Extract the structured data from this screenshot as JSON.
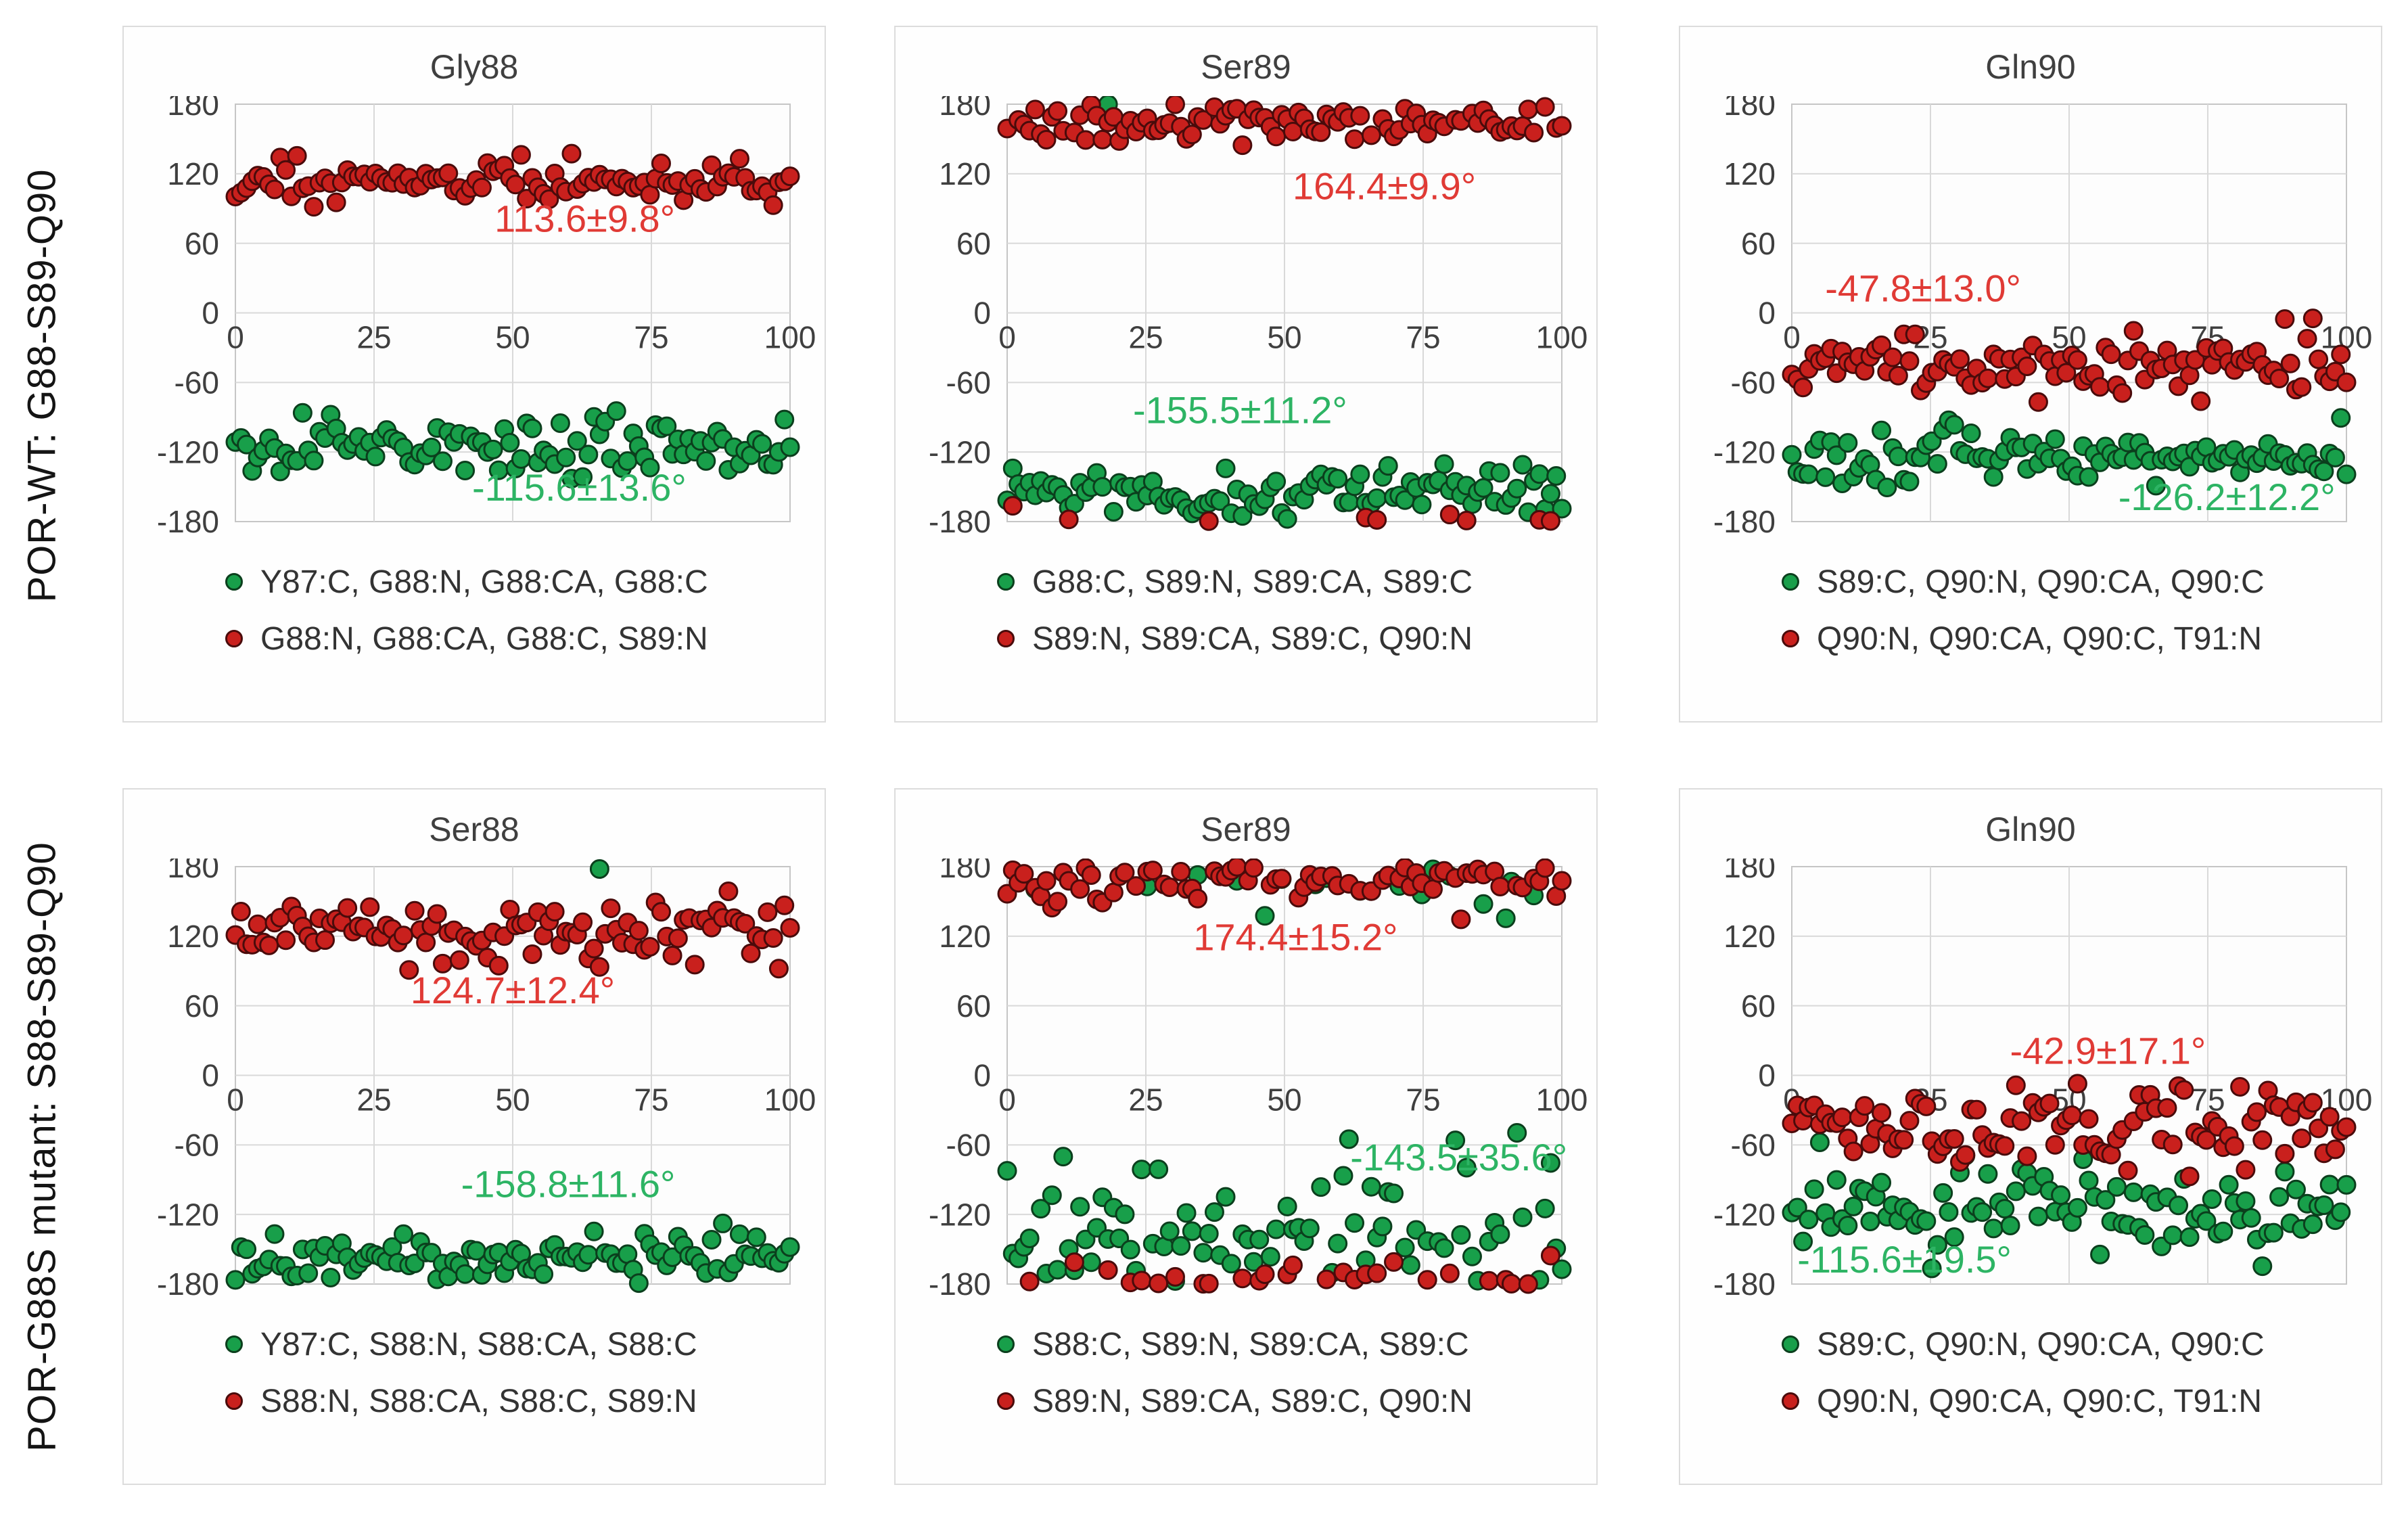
{
  "rows": [
    {
      "label": "POR-WT: G88-S89-Q90"
    },
    {
      "label": "POR-G88S mutant: S88-S89-Q90"
    }
  ],
  "colors": {
    "red_marker": "#c9201d",
    "red_stroke": "#4a0b0b",
    "red_text": "#e03a35",
    "green_marker": "#189f4a",
    "green_stroke": "#0b3f1d",
    "green_text": "#2db464",
    "axis_text": "#3f3f3f",
    "grid": "#d9d9d9",
    "plot_border": "#c6c6c6",
    "plot_bg": "#fdfdfd"
  },
  "chart_data": [
    {
      "type": "scatter",
      "title": "Gly88",
      "xlim": [
        0,
        100
      ],
      "ylim": [
        -180,
        180
      ],
      "x_ticks": [
        0,
        25,
        50,
        75,
        100
      ],
      "y_ticks": [
        180,
        120,
        60,
        0,
        -60,
        -120,
        -180
      ],
      "xlabel": "",
      "ylabel": "",
      "grid": true,
      "series": [
        {
          "name": "Y87:C, G88:N, G88:CA, G88:C",
          "color": "green",
          "mean": -115.6,
          "std": 13.6,
          "n": 100
        },
        {
          "name": "G88:N, G88:CA, G88:C, S89:N",
          "color": "red",
          "mean": 113.6,
          "std": 9.8,
          "n": 100
        }
      ],
      "annotations": [
        {
          "text": "113.6±9.8°",
          "color": "red",
          "x": 63,
          "y": 70,
          "anchor": "middle"
        },
        {
          "text": "-115.6±13.6°",
          "color": "green",
          "x": 62,
          "y": -162,
          "anchor": "middle"
        }
      ],
      "legend": [
        {
          "color": "green",
          "label": "Y87:C, G88:N, G88:CA, G88:C"
        },
        {
          "color": "red",
          "label": "G88:N, G88:CA, G88:C, S89:N"
        }
      ]
    },
    {
      "type": "scatter",
      "title": "Ser89",
      "xlim": [
        0,
        100
      ],
      "ylim": [
        -180,
        180
      ],
      "x_ticks": [
        0,
        25,
        50,
        75,
        100
      ],
      "y_ticks": [
        180,
        120,
        60,
        0,
        -60,
        -120,
        -180
      ],
      "xlabel": "",
      "ylabel": "",
      "grid": true,
      "series": [
        {
          "name": "G88:C, S89:N, S89:CA, S89:C",
          "color": "green",
          "mean": -155.5,
          "std": 11.2,
          "n": 100
        },
        {
          "name": "S89:N, S89:CA, S89:C, Q90:N",
          "color": "red",
          "mean": 164.4,
          "std": 9.9,
          "n": 100
        }
      ],
      "annotations": [
        {
          "text": "164.4±9.9°",
          "color": "red",
          "x": 68,
          "y": 98,
          "anchor": "middle"
        },
        {
          "text": "-155.5±11.2°",
          "color": "green",
          "x": 42,
          "y": -95,
          "anchor": "middle"
        }
      ],
      "legend": [
        {
          "color": "green",
          "label": "G88:C, S89:N, S89:CA, S89:C"
        },
        {
          "color": "red",
          "label": "S89:N, S89:CA, S89:C, Q90:N"
        }
      ]
    },
    {
      "type": "scatter",
      "title": "Gln90",
      "xlim": [
        0,
        100
      ],
      "ylim": [
        -180,
        180
      ],
      "x_ticks": [
        0,
        25,
        50,
        75,
        100
      ],
      "y_ticks": [
        180,
        120,
        60,
        0,
        -60,
        -120,
        -180
      ],
      "xlabel": "",
      "ylabel": "",
      "grid": true,
      "series": [
        {
          "name": "S89:C, Q90:N, Q90:CA, Q90:C",
          "color": "green",
          "mean": -126.2,
          "std": 12.2,
          "n": 100
        },
        {
          "name": "Q90:N, Q90:CA, Q90:C, T91:N",
          "color": "red",
          "mean": -47.8,
          "std": 13.0,
          "n": 100
        }
      ],
      "annotations": [
        {
          "text": "-47.8±13.0°",
          "color": "red",
          "x": 6,
          "y": 10,
          "anchor": "start"
        },
        {
          "text": "-126.2±12.2°",
          "color": "green",
          "x": 98,
          "y": -170,
          "anchor": "end"
        }
      ],
      "legend": [
        {
          "color": "green",
          "label": "S89:C, Q90:N, Q90:CA, Q90:C"
        },
        {
          "color": "red",
          "label": "Q90:N, Q90:CA, Q90:C, T91:N"
        }
      ]
    },
    {
      "type": "scatter",
      "title": "Ser88",
      "xlim": [
        0,
        100
      ],
      "ylim": [
        -180,
        180
      ],
      "x_ticks": [
        0,
        25,
        50,
        75,
        100
      ],
      "y_ticks": [
        180,
        120,
        60,
        0,
        -60,
        -120,
        -180
      ],
      "xlabel": "",
      "ylabel": "",
      "grid": true,
      "series": [
        {
          "name": "Y87:C, S88:N, S88:CA, S88:C",
          "color": "green",
          "mean": -158.8,
          "std": 11.6,
          "n": 100
        },
        {
          "name": "S88:N, S88:CA, S88:C, S89:N",
          "color": "red",
          "mean": 124.7,
          "std": 12.4,
          "n": 100
        }
      ],
      "annotations": [
        {
          "text": "124.7±12.4°",
          "color": "red",
          "x": 50,
          "y": 62,
          "anchor": "middle"
        },
        {
          "text": "-158.8±11.6°",
          "color": "green",
          "x": 60,
          "y": -105,
          "anchor": "middle"
        }
      ],
      "legend": [
        {
          "color": "green",
          "label": "Y87:C, S88:N, S88:CA, S88:C"
        },
        {
          "color": "red",
          "label": "S88:N, S88:CA, S88:C, S89:N"
        }
      ]
    },
    {
      "type": "scatter",
      "title": "Ser89",
      "xlim": [
        0,
        100
      ],
      "ylim": [
        -180,
        180
      ],
      "x_ticks": [
        0,
        25,
        50,
        75,
        100
      ],
      "y_ticks": [
        180,
        120,
        60,
        0,
        -60,
        -120,
        -180
      ],
      "xlabel": "",
      "ylabel": "",
      "grid": true,
      "series": [
        {
          "name": "S88:C, S89:N, S89:CA, S89:C",
          "color": "green",
          "mean": -143.5,
          "std": 35.6,
          "n": 100
        },
        {
          "name": "S89:N, S89:CA, S89:C, Q90:N",
          "color": "red",
          "mean": 174.4,
          "std": 15.2,
          "n": 100
        }
      ],
      "annotations": [
        {
          "text": "174.4±15.2°",
          "color": "red",
          "x": 52,
          "y": 108,
          "anchor": "middle"
        },
        {
          "text": "-143.5±35.6°",
          "color": "green",
          "x": 101,
          "y": -82,
          "anchor": "end"
        }
      ],
      "legend": [
        {
          "color": "green",
          "label": "S88:C, S89:N, S89:CA, S89:C"
        },
        {
          "color": "red",
          "label": "S89:N, S89:CA, S89:C, Q90:N"
        }
      ]
    },
    {
      "type": "scatter",
      "title": "Gln90",
      "xlim": [
        0,
        100
      ],
      "ylim": [
        -180,
        180
      ],
      "x_ticks": [
        0,
        25,
        50,
        75,
        100
      ],
      "y_ticks": [
        180,
        120,
        60,
        0,
        -60,
        -120,
        -180
      ],
      "xlabel": "",
      "ylabel": "",
      "grid": true,
      "series": [
        {
          "name": "S89:C, Q90:N, Q90:CA, Q90:C",
          "color": "green",
          "mean": -115.6,
          "std": 19.5,
          "n": 100
        },
        {
          "name": "Q90:N, Q90:CA, Q90:C, T91:N",
          "color": "red",
          "mean": -42.9,
          "std": 17.1,
          "n": 100
        }
      ],
      "annotations": [
        {
          "text": "-42.9±17.1°",
          "color": "red",
          "x": 57,
          "y": 10,
          "anchor": "middle"
        },
        {
          "text": "-115.6±19.5°",
          "color": "green",
          "x": 1,
          "y": -170,
          "anchor": "start"
        }
      ],
      "legend": [
        {
          "color": "green",
          "label": "S89:C, Q90:N, Q90:CA, Q90:C"
        },
        {
          "color": "red",
          "label": "Q90:N, Q90:CA, Q90:C, T91:N"
        }
      ]
    }
  ]
}
